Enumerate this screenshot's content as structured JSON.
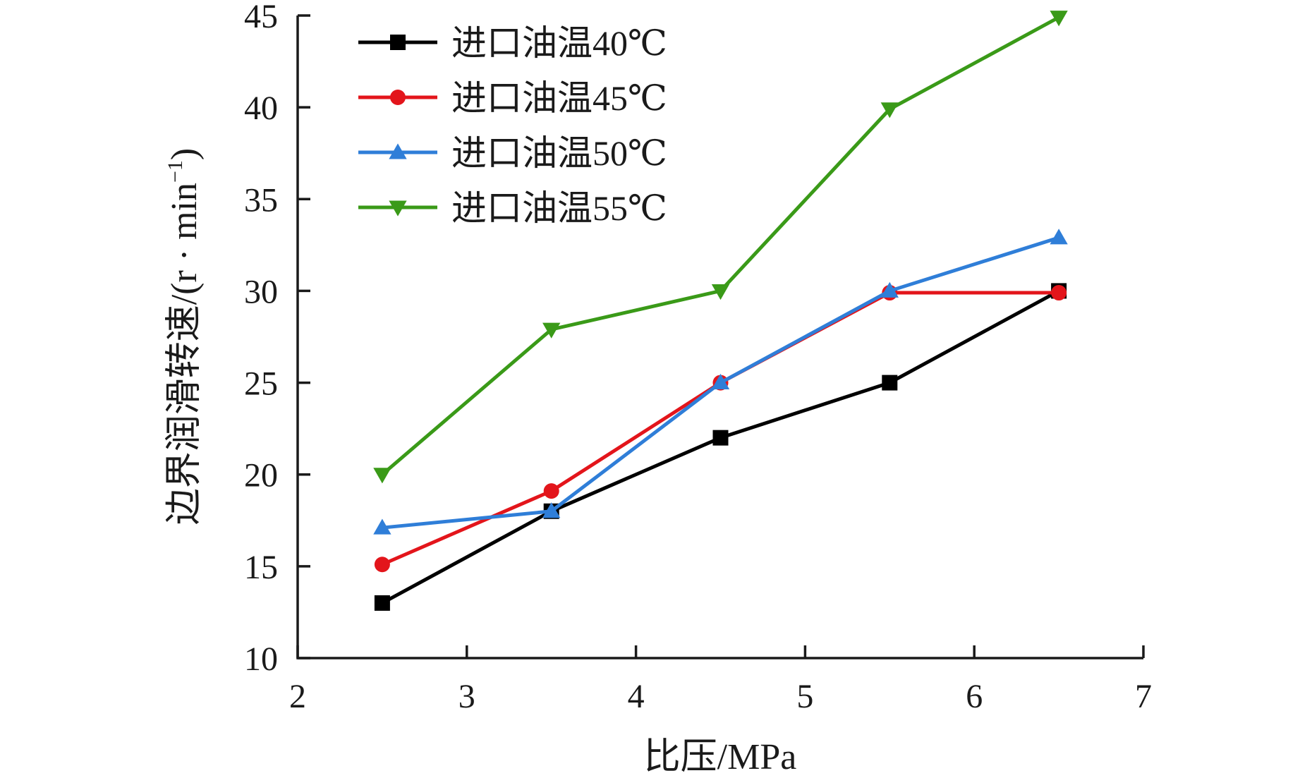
{
  "chart_data": {
    "type": "line",
    "title": "",
    "xlabel": "比压/MPa",
    "ylabel": "边界润滑转速/(r · min",
    "ylabel_superscript": "−1",
    "ylabel_suffix": ")",
    "xlim": [
      2,
      7
    ],
    "ylim": [
      10,
      45
    ],
    "xticks": [
      2,
      3,
      4,
      5,
      6,
      7
    ],
    "yticks": [
      10,
      15,
      20,
      25,
      30,
      35,
      40,
      45
    ],
    "grid": false,
    "legend_position": "top-left",
    "x": [
      2.5,
      3.5,
      4.5,
      5.5,
      6.5
    ],
    "series": [
      {
        "name": "进口油温40℃",
        "color": "#000000",
        "marker": "square",
        "values": [
          13,
          18,
          22,
          25,
          30
        ]
      },
      {
        "name": "进口油温45℃",
        "color": "#e3151b",
        "marker": "circle",
        "values": [
          15.1,
          19.1,
          25,
          29.9,
          29.9
        ]
      },
      {
        "name": "进口油温50℃",
        "color": "#2f7ed8",
        "marker": "triangle-up",
        "values": [
          17.1,
          18,
          25,
          30,
          32.9
        ]
      },
      {
        "name": "进口油温55℃",
        "color": "#3a9a18",
        "marker": "triangle-down",
        "values": [
          20,
          27.9,
          30,
          39.9,
          44.9
        ]
      }
    ]
  }
}
